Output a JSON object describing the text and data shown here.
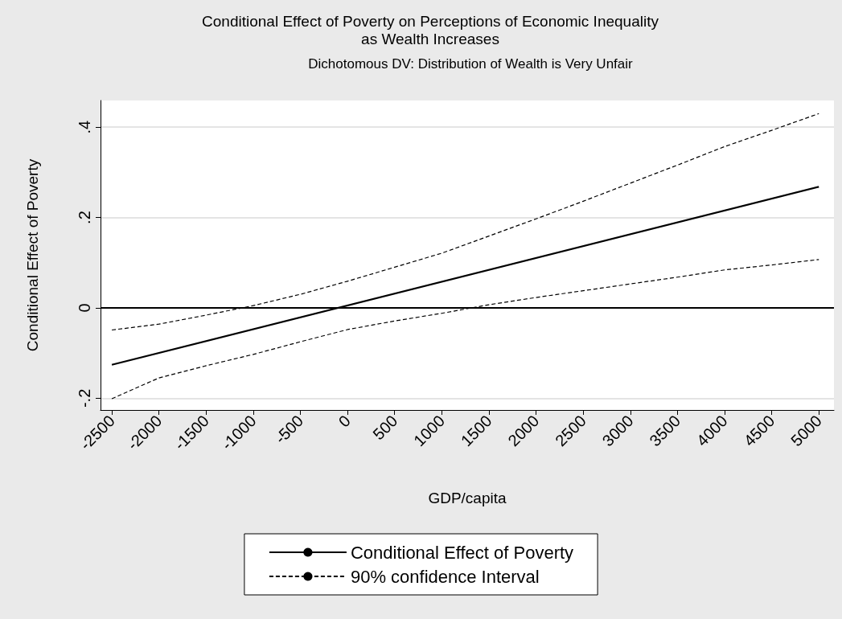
{
  "chart_data": {
    "type": "line",
    "title": "Conditional Effect of Poverty on Perceptions of Economic Inequality\nas Wealth Increases",
    "subtitle": "Dichotomous DV: Distribution of Wealth is Very Unfair",
    "xlabel": "GDP/capita",
    "ylabel": "Conditional Effect of Poverty",
    "x": [
      -2500,
      -2000,
      -1500,
      -1000,
      -500,
      0,
      500,
      1000,
      1500,
      2000,
      2500,
      3000,
      3500,
      4000,
      4500,
      5000
    ],
    "series": [
      {
        "name": "Conditional Effect of Poverty",
        "color": "#000000",
        "line_style": "solid",
        "x": [
          -2500,
          5000
        ],
        "values": [
          -0.126,
          0.268
        ]
      },
      {
        "name": "90% confidence Interval",
        "color": "#000000",
        "line_style": "dashed",
        "values": [
          -0.049,
          -0.036,
          -0.016,
          0.005,
          0.03,
          0.059,
          0.09,
          0.121,
          0.159,
          0.197,
          0.236,
          0.276,
          0.316,
          0.357,
          0.393,
          0.43
        ]
      },
      {
        "color": "#000000",
        "line_style": "dashed",
        "values": [
          -0.201,
          -0.155,
          -0.128,
          -0.103,
          -0.075,
          -0.048,
          -0.029,
          -0.012,
          0.007,
          0.023,
          0.038,
          0.053,
          0.068,
          0.084,
          0.095,
          0.107
        ]
      }
    ],
    "xlim": [
      -2620,
      5160
    ],
    "xticks": [
      -2500,
      -2000,
      -1500,
      -1000,
      -500,
      0,
      500,
      1000,
      1500,
      2000,
      2500,
      3000,
      3500,
      4000,
      4500,
      5000
    ],
    "ylim": [
      -0.226,
      0.459
    ],
    "yticks": [
      {
        "value": -0.2,
        "label": "-.2"
      },
      0,
      {
        "value": 0.2,
        "label": ".2"
      },
      {
        "value": 0.4,
        "label": ".4"
      }
    ],
    "ref_lines": [
      {
        "axis": "y",
        "value": 0,
        "label": null,
        "color": "#000000"
      }
    ],
    "grid": "y",
    "legend": "bottom",
    "marker": "none"
  }
}
